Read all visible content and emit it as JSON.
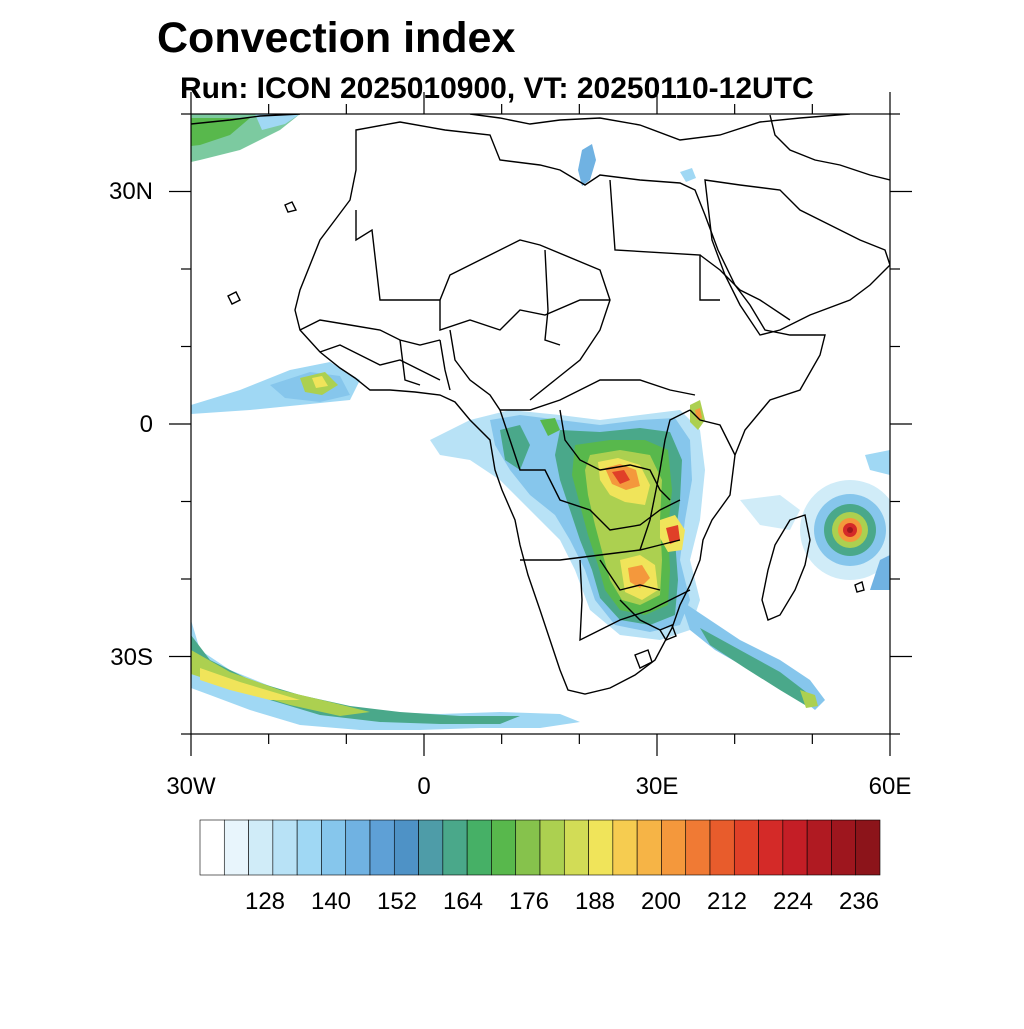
{
  "title": "Convection index",
  "subtitle": "Run: ICON 2025010900,  VT: 20250110-12UTC",
  "map": {
    "lon_range": [
      -30,
      60
    ],
    "lat_range": [
      -40,
      40
    ],
    "lon_ticks": [
      {
        "value": -30,
        "label": "30W"
      },
      {
        "value": 0,
        "label": "0"
      },
      {
        "value": 30,
        "label": "30E"
      },
      {
        "value": 60,
        "label": "60E"
      }
    ],
    "lat_ticks": [
      {
        "value": 30,
        "label": "30N"
      },
      {
        "value": 0,
        "label": "0"
      },
      {
        "value": -30,
        "label": "30S"
      }
    ]
  },
  "colorbar": {
    "colors": [
      "#ffffff",
      "#e8f5fc",
      "#d0ecf8",
      "#b8e2f6",
      "#a0d8f4",
      "#86c6ec",
      "#70b2e2",
      "#5ea0d6",
      "#4e92c6",
      "#4e9ca8",
      "#4aa88a",
      "#46b066",
      "#58b84c",
      "#86c24c",
      "#acd050",
      "#d2dc56",
      "#f0e45a",
      "#f6cc50",
      "#f6b446",
      "#f4983c",
      "#f07a34",
      "#e85c2c",
      "#e04028",
      "#d42a28",
      "#c41e26",
      "#b01a22",
      "#9e161e",
      "#8c141a"
    ],
    "tick_labels": [
      "128",
      "140",
      "152",
      "164",
      "176",
      "188",
      "200",
      "212",
      "224",
      "236"
    ]
  },
  "features": {
    "cyclone_center": {
      "lon": 55.5,
      "lat": -13.5
    }
  }
}
